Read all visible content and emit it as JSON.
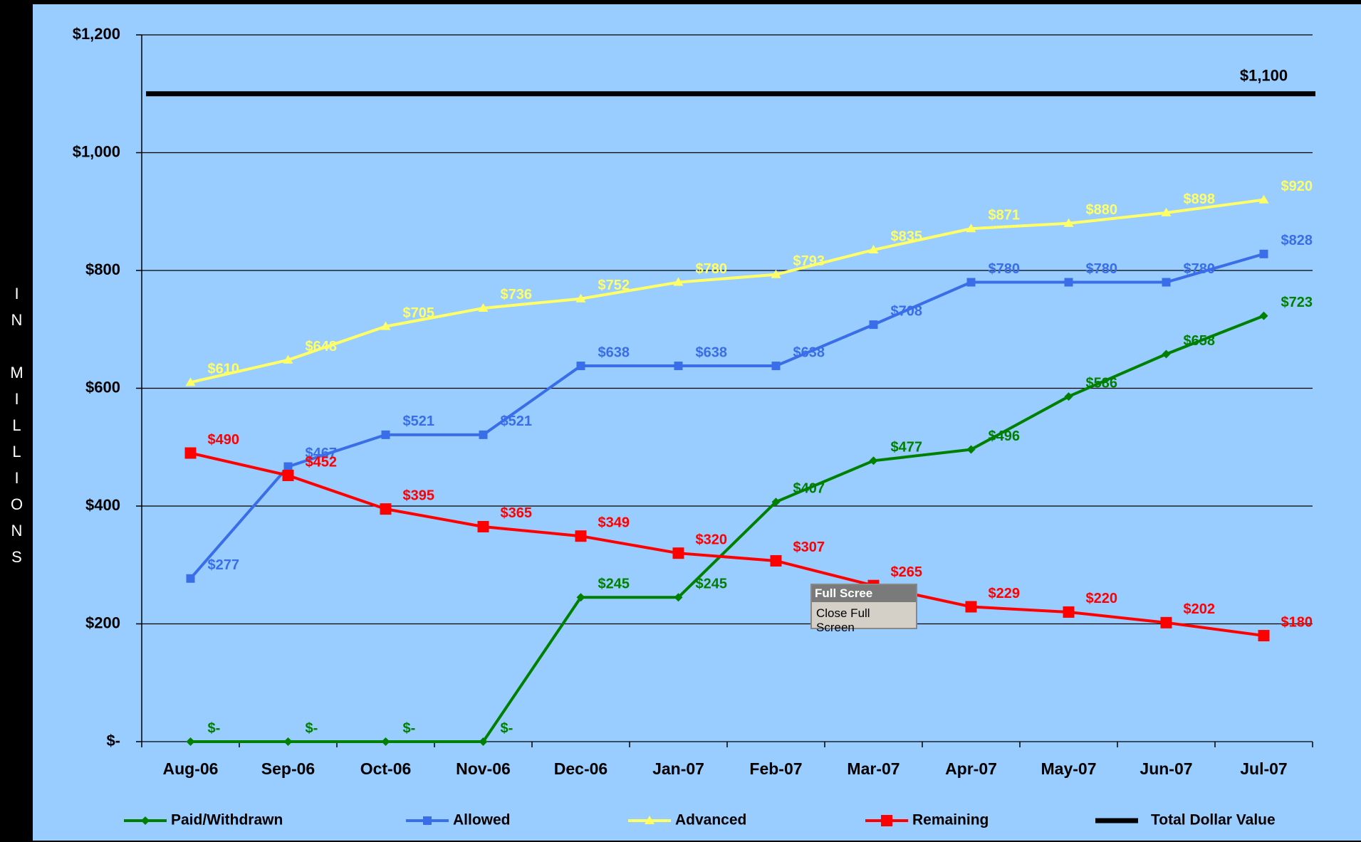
{
  "chart_data": {
    "type": "line",
    "axis_label": "IN MILLIONS",
    "categories": [
      "Aug-06",
      "Sep-06",
      "Oct-06",
      "Nov-06",
      "Dec-06",
      "Jan-07",
      "Feb-07",
      "Mar-07",
      "Apr-07",
      "May-07",
      "Jun-07",
      "Jul-07"
    ],
    "ylim": [
      0,
      1200
    ],
    "yticks": [
      {
        "value": 0,
        "label": "$-"
      },
      {
        "value": 200,
        "label": "$200"
      },
      {
        "value": 400,
        "label": "$400"
      },
      {
        "value": 600,
        "label": "$600"
      },
      {
        "value": 800,
        "label": "$800"
      },
      {
        "value": 1000,
        "label": "$1,000"
      },
      {
        "value": 1200,
        "label": "$1,200"
      }
    ],
    "grid": true,
    "series": [
      {
        "name": "Paid/Withdrawn",
        "color": "#008000",
        "marker": "diamond",
        "values": [
          0,
          0,
          0,
          0,
          245,
          245,
          407,
          477,
          496,
          586,
          658,
          723
        ],
        "value_labels": [
          "$-",
          "$-",
          "$-",
          "$-",
          "$245",
          "$245",
          "$407",
          "$477",
          "$496",
          "$586",
          "$658",
          "$723"
        ]
      },
      {
        "name": "Allowed",
        "color": "#3a6ee8",
        "marker": "square",
        "values": [
          277,
          467,
          521,
          521,
          638,
          638,
          638,
          708,
          780,
          780,
          780,
          828
        ],
        "value_labels": [
          "$277",
          "$467",
          "$521",
          "$521",
          "$638",
          "$638",
          "$638",
          "$708",
          "$780",
          "$780",
          "$780",
          "$828"
        ]
      },
      {
        "name": "Advanced",
        "color": "#ffff66",
        "marker": "triangle",
        "values": [
          610,
          648,
          705,
          736,
          752,
          780,
          793,
          835,
          871,
          880,
          898,
          920
        ],
        "value_labels": [
          "$610",
          "$648",
          "$705",
          "$736",
          "$752",
          "$780",
          "$793",
          "$835",
          "$871",
          "$880",
          "$898",
          "$920"
        ]
      },
      {
        "name": "Remaining",
        "color": "#ff0000",
        "marker": "bigsquare",
        "values": [
          490,
          452,
          395,
          365,
          349,
          320,
          307,
          265,
          229,
          220,
          202,
          180
        ],
        "value_labels": [
          "$490",
          "$452",
          "$395",
          "$365",
          "$349",
          "$320",
          "$307",
          "$265",
          "$229",
          "$220",
          "$202",
          "$180"
        ]
      }
    ],
    "reference_line": {
      "name": "Total Dollar Value",
      "color": "#000000",
      "value": 1100,
      "label": "$1,100"
    }
  },
  "popup": {
    "title": "Full Scree",
    "button": "Close Full Screen"
  }
}
